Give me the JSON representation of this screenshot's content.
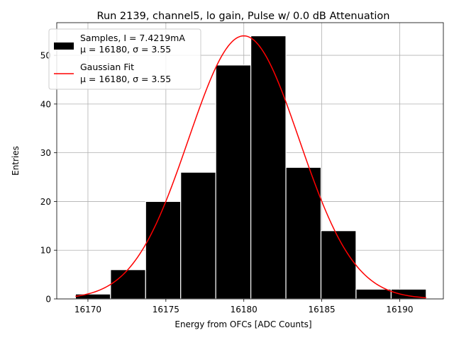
{
  "chart_data": {
    "type": "bar",
    "title": "Run 2139, channel5, lo gain, Pulse w/ 0.0 dB Attenuation",
    "xlabel": "Energy from OFCs [ADC Counts]",
    "ylabel": "Entries",
    "xlim": [
      16168.0,
      16192.8
    ],
    "ylim": [
      0,
      56.7
    ],
    "xticks": [
      16170,
      16175,
      16180,
      16185,
      16190
    ],
    "yticks": [
      0,
      10,
      20,
      30,
      40,
      50
    ],
    "grid": true,
    "legend_position": "top-left",
    "histogram": {
      "name": "Samples, I = 7.4219mA",
      "name_line2": "μ = 16180, σ = 3.55",
      "color": "#000000",
      "edge_color": "#ffffff",
      "bin_edges": [
        16169.2,
        16171.45,
        16173.7,
        16175.95,
        16178.2,
        16180.45,
        16182.7,
        16184.95,
        16187.2,
        16189.45,
        16191.7
      ],
      "counts": [
        1,
        6,
        20,
        26,
        48,
        54,
        27,
        14,
        2,
        2
      ]
    },
    "fit": {
      "name": "Gaussian Fit",
      "name_line2": "μ = 16180, σ = 3.55",
      "color": "#ff0000",
      "mu": 16180,
      "sigma": 3.55,
      "amplitude": 54,
      "x_range": [
        16169.2,
        16191.7
      ]
    }
  }
}
